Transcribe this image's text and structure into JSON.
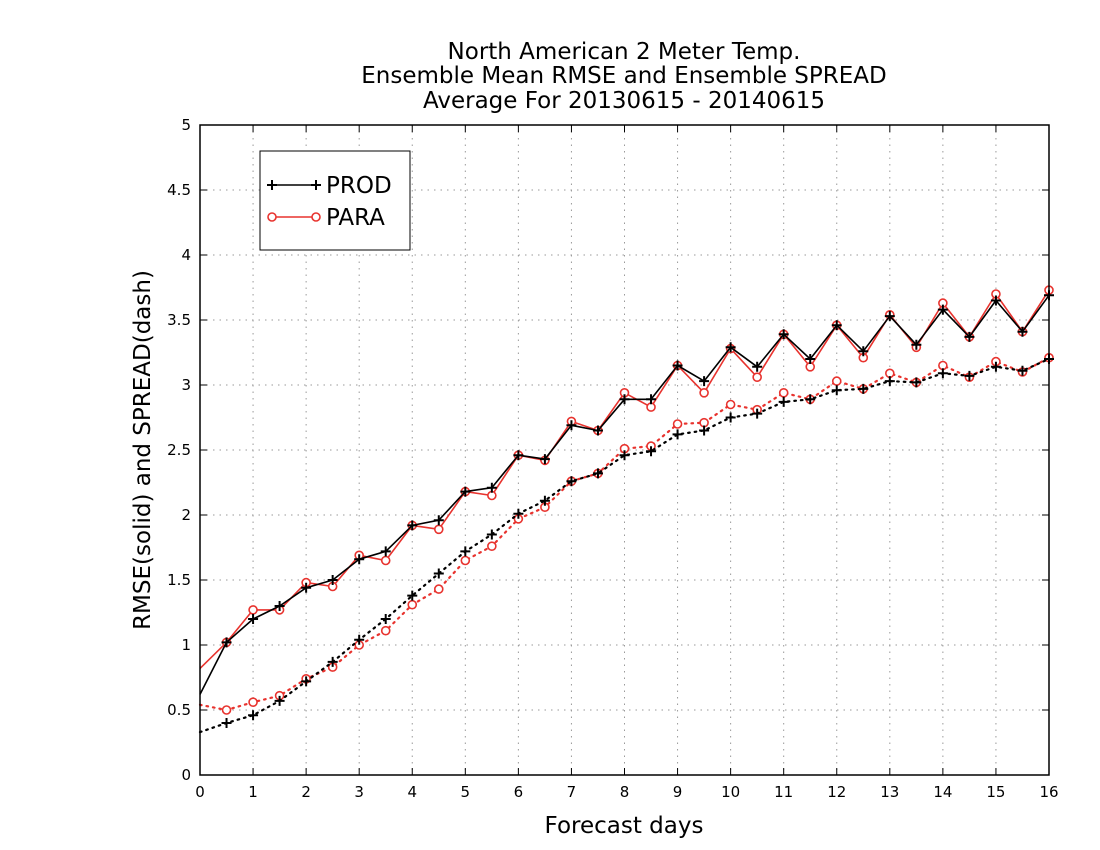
{
  "chart_data": {
    "type": "line",
    "title": [
      "North American 2 Meter Temp.",
      "Ensemble Mean RMSE and Ensemble SPREAD",
      "Average For 20130615 - 20140615"
    ],
    "xlabel": "Forecast days",
    "ylabel": "RMSE(solid) and SPREAD(dash)",
    "xlim": [
      0,
      16
    ],
    "ylim": [
      0,
      5
    ],
    "xticks": [
      0,
      1,
      2,
      3,
      4,
      5,
      6,
      7,
      8,
      9,
      10,
      11,
      12,
      13,
      14,
      15,
      16
    ],
    "yticks": [
      0,
      0.5,
      1,
      1.5,
      2,
      2.5,
      3,
      3.5,
      4,
      4.5,
      5
    ],
    "ytick_labels": [
      "0",
      "0.5",
      "1",
      "1.5",
      "2",
      "2.5",
      "3",
      "3.5",
      "4",
      "4.5",
      "5"
    ],
    "grid": true,
    "legend_position": "top-left",
    "x": [
      0,
      0.5,
      1,
      1.5,
      2,
      2.5,
      3,
      3.5,
      4,
      4.5,
      5,
      5.5,
      6,
      6.5,
      7,
      7.5,
      8,
      8.5,
      9,
      9.5,
      10,
      10.5,
      11,
      11.5,
      12,
      12.5,
      13,
      13.5,
      14,
      14.5,
      15,
      15.5,
      16
    ],
    "series": [
      {
        "name": "PROD",
        "metric": "RMSE",
        "style": "solid",
        "marker": "plus",
        "color": "#000000",
        "values": [
          0.62,
          1.02,
          1.2,
          1.3,
          1.44,
          1.5,
          1.66,
          1.72,
          1.92,
          1.96,
          2.18,
          2.21,
          2.46,
          2.43,
          2.69,
          2.65,
          2.89,
          2.89,
          3.15,
          3.03,
          3.29,
          3.14,
          3.39,
          3.2,
          3.46,
          3.26,
          3.53,
          3.31,
          3.58,
          3.37,
          3.65,
          3.41,
          3.69
        ]
      },
      {
        "name": "PARA",
        "metric": "RMSE",
        "style": "solid",
        "marker": "circle",
        "color": "#e8332e",
        "values": [
          0.82,
          1.02,
          1.27,
          1.27,
          1.48,
          1.45,
          1.69,
          1.65,
          1.92,
          1.89,
          2.18,
          2.15,
          2.46,
          2.42,
          2.72,
          2.65,
          2.94,
          2.83,
          3.15,
          2.94,
          3.28,
          3.06,
          3.39,
          3.14,
          3.46,
          3.21,
          3.54,
          3.29,
          3.63,
          3.37,
          3.7,
          3.41,
          3.73
        ]
      },
      {
        "name": "PROD",
        "metric": "SPREAD",
        "style": "dotted",
        "marker": "plus",
        "color": "#000000",
        "values": [
          0.33,
          0.4,
          0.46,
          0.57,
          0.72,
          0.87,
          1.04,
          1.2,
          1.38,
          1.55,
          1.72,
          1.85,
          2.01,
          2.11,
          2.26,
          2.32,
          2.46,
          2.49,
          2.62,
          2.65,
          2.75,
          2.78,
          2.87,
          2.89,
          2.96,
          2.97,
          3.03,
          3.02,
          3.09,
          3.07,
          3.14,
          3.11,
          3.2
        ]
      },
      {
        "name": "PARA",
        "metric": "SPREAD",
        "style": "dotted",
        "marker": "circle",
        "color": "#e8332e",
        "values": [
          0.54,
          0.5,
          0.56,
          0.61,
          0.74,
          0.83,
          1.0,
          1.11,
          1.31,
          1.43,
          1.65,
          1.76,
          1.97,
          2.06,
          2.26,
          2.32,
          2.51,
          2.53,
          2.7,
          2.71,
          2.85,
          2.81,
          2.94,
          2.89,
          3.03,
          2.97,
          3.09,
          3.02,
          3.15,
          3.06,
          3.18,
          3.1,
          3.21
        ]
      }
    ],
    "legend": [
      {
        "label": "PROD",
        "marker": "plus",
        "color": "#000000"
      },
      {
        "label": "PARA",
        "marker": "circle",
        "color": "#e8332e"
      }
    ]
  }
}
